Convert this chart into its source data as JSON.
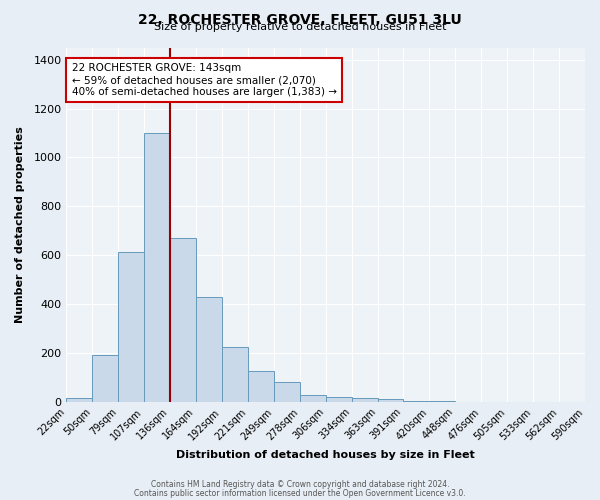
{
  "title": "22, ROCHESTER GROVE, FLEET, GU51 3LU",
  "subtitle": "Size of property relative to detached houses in Fleet",
  "xlabel": "Distribution of detached houses by size in Fleet",
  "ylabel": "Number of detached properties",
  "bar_values": [
    15,
    190,
    615,
    1100,
    670,
    430,
    225,
    125,
    80,
    30,
    20,
    15,
    10,
    5,
    2,
    1,
    0,
    0,
    0,
    0
  ],
  "bin_labels": [
    "22sqm",
    "50sqm",
    "79sqm",
    "107sqm",
    "136sqm",
    "164sqm",
    "192sqm",
    "221sqm",
    "249sqm",
    "278sqm",
    "306sqm",
    "334sqm",
    "363sqm",
    "391sqm",
    "420sqm",
    "448sqm",
    "476sqm",
    "505sqm",
    "533sqm",
    "562sqm",
    "590sqm"
  ],
  "bar_color": "#c9d9ea",
  "bar_edge_color": "#6699bb",
  "property_line_value": 4,
  "property_line_color": "#990000",
  "annotation_line1": "22 ROCHESTER GROVE: 143sqm",
  "annotation_line2": "← 59% of detached houses are smaller (2,070)",
  "annotation_line3": "40% of semi-detached houses are larger (1,383) →",
  "annotation_box_color": "#ffffff",
  "annotation_box_edge_color": "#cc0000",
  "ylim": [
    0,
    1450
  ],
  "yticks": [
    0,
    200,
    400,
    600,
    800,
    1000,
    1200,
    1400
  ],
  "footer1": "Contains HM Land Registry data © Crown copyright and database right 2024.",
  "footer2": "Contains public sector information licensed under the Open Government Licence v3.0.",
  "bg_color": "#e8eef5",
  "plot_bg_color": "#eef3f8",
  "grid_color": "#ffffff",
  "title_fontsize": 10,
  "subtitle_fontsize": 8,
  "axis_label_fontsize": 8,
  "tick_fontsize": 7,
  "annotation_fontsize": 7.5,
  "footer_fontsize": 5.5
}
